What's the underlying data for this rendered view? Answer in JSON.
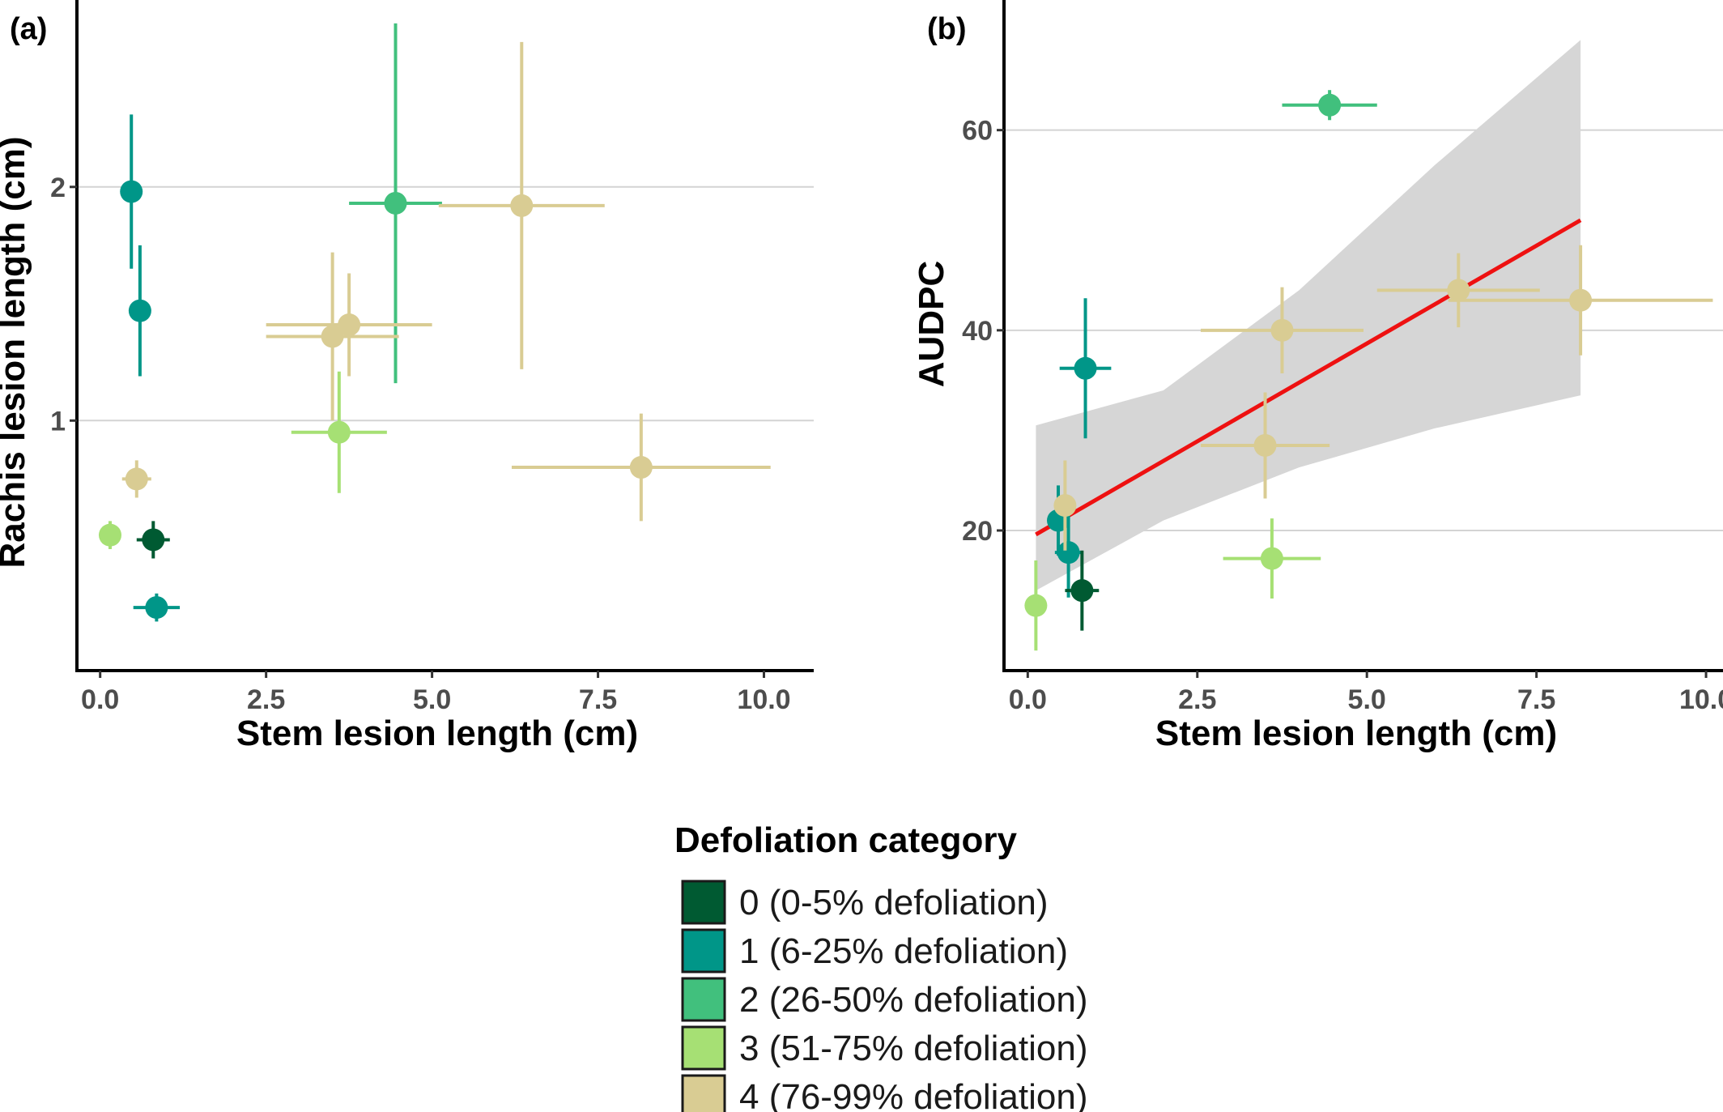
{
  "chart_data": [
    {
      "panel": "(a)",
      "type": "scatter",
      "xlabel": "Stem lesion length (cm)",
      "ylabel": "Rachis lesion length (cm)",
      "xlim": [
        -0.35,
        10.75
      ],
      "ylim": [
        -0.07,
        2.8
      ],
      "x_ticks": [
        0,
        2.5,
        5,
        7.5,
        10
      ],
      "x_tick_labels": [
        "0.0",
        "2.5",
        "5.0",
        "7.5",
        "10.0"
      ],
      "y_ticks": [
        1,
        2
      ],
      "y_tick_labels": [
        "1",
        "2"
      ],
      "grid": "horizontal major",
      "points": [
        {
          "x": 0.47,
          "y": 1.98,
          "xerr": 0.12,
          "yerr": 0.33,
          "category": 1
        },
        {
          "x": 0.6,
          "y": 1.47,
          "xerr": 0.12,
          "yerr": 0.28,
          "category": 1
        },
        {
          "x": 0.85,
          "y": 0.2,
          "xerr": 0.35,
          "yerr": 0.06,
          "category": 1
        },
        {
          "x": 0.8,
          "y": 0.49,
          "xerr": 0.25,
          "yerr": 0.08,
          "category": 0
        },
        {
          "x": 0.15,
          "y": 0.51,
          "xerr": 0.08,
          "yerr": 0.06,
          "category": 3
        },
        {
          "x": 0.55,
          "y": 0.75,
          "xerr": 0.22,
          "yerr": 0.08,
          "category": 4
        },
        {
          "x": 4.45,
          "y": 1.93,
          "xerr": 0.7,
          "yerr": 0.77,
          "category": 2
        },
        {
          "x": 6.35,
          "y": 1.92,
          "xerr": 1.25,
          "yerr": 0.7,
          "category": 4
        },
        {
          "x": 3.75,
          "y": 1.41,
          "xerr": 1.25,
          "yerr": 0.22,
          "category": 4
        },
        {
          "x": 3.5,
          "y": 1.36,
          "xerr": 1.0,
          "yerr": 0.36,
          "category": 4
        },
        {
          "x": 3.6,
          "y": 0.95,
          "xerr": 0.72,
          "yerr": 0.26,
          "category": 3
        },
        {
          "x": 8.15,
          "y": 0.8,
          "xerr": 1.95,
          "yerr": 0.23,
          "category": 4
        }
      ]
    },
    {
      "panel": "(b)",
      "type": "scatter",
      "xlabel": "Stem lesion length (cm)",
      "ylabel": "AUDPC",
      "xlim": [
        -0.35,
        10.25
      ],
      "ylim": [
        6,
        73
      ],
      "x_ticks": [
        0,
        2.5,
        5,
        7.5,
        10
      ],
      "x_tick_labels": [
        "0.0",
        "2.5",
        "5.0",
        "7.5",
        "10.0"
      ],
      "y_ticks": [
        20,
        40,
        60
      ],
      "y_tick_labels": [
        "20",
        "40",
        "60"
      ],
      "grid": "horizontal major",
      "points": [
        {
          "x": 0.45,
          "y": 21.0,
          "xerr": 0.05,
          "yerr": 3.5,
          "category": 1
        },
        {
          "x": 0.6,
          "y": 17.8,
          "xerr": 0.2,
          "yerr": 4.5,
          "category": 1
        },
        {
          "x": 0.85,
          "y": 36.2,
          "xerr": 0.38,
          "yerr": 7.0,
          "category": 1
        },
        {
          "x": 0.8,
          "y": 14.0,
          "xerr": 0.25,
          "yerr": 4.0,
          "category": 0
        },
        {
          "x": 0.12,
          "y": 12.5,
          "xerr": 0.1,
          "yerr": 4.5,
          "category": 3
        },
        {
          "x": 0.55,
          "y": 22.5,
          "xerr": 0.1,
          "yerr": 4.5,
          "category": 4
        },
        {
          "x": 4.45,
          "y": 62.5,
          "xerr": 0.7,
          "yerr": 1.5,
          "category": 2
        },
        {
          "x": 3.75,
          "y": 40.0,
          "xerr": 1.2,
          "yerr": 4.3,
          "category": 4
        },
        {
          "x": 3.5,
          "y": 28.5,
          "xerr": 0.95,
          "yerr": 5.3,
          "category": 4
        },
        {
          "x": 3.6,
          "y": 17.2,
          "xerr": 0.72,
          "yerr": 4.0,
          "category": 3
        },
        {
          "x": 6.35,
          "y": 44.0,
          "xerr": 1.2,
          "yerr": 3.7,
          "category": 4
        },
        {
          "x": 8.15,
          "y": 43.0,
          "xerr": 1.95,
          "yerr": 5.5,
          "category": 4
        }
      ],
      "fit_line": {
        "color": "#ee1111",
        "x": [
          0.12,
          8.15
        ],
        "y": [
          19.6,
          51.0
        ]
      },
      "confidence_band": {
        "color": "#d6d6d6",
        "x": [
          0.12,
          2.0,
          4.0,
          6.0,
          8.15
        ],
        "lower": [
          14.0,
          21.0,
          26.3,
          30.2,
          33.5
        ],
        "upper": [
          30.5,
          34.0,
          44.0,
          56.5,
          69.0
        ]
      }
    }
  ],
  "legend": {
    "title": "Defoliation category",
    "placement": "bottom-center",
    "items": [
      {
        "id": 0,
        "label": "0 (0-5% defoliation)",
        "color": "#005a32"
      },
      {
        "id": 1,
        "label": "1 (6-25% defoliation)",
        "color": "#009688"
      },
      {
        "id": 2,
        "label": "2 (26-50% defoliation)",
        "color": "#41c07d"
      },
      {
        "id": 3,
        "label": "3 (51-75% defoliation)",
        "color": "#a6e074"
      },
      {
        "id": 4,
        "label": "4 (76-99% defoliation)",
        "color": "#d9cc93"
      }
    ]
  }
}
